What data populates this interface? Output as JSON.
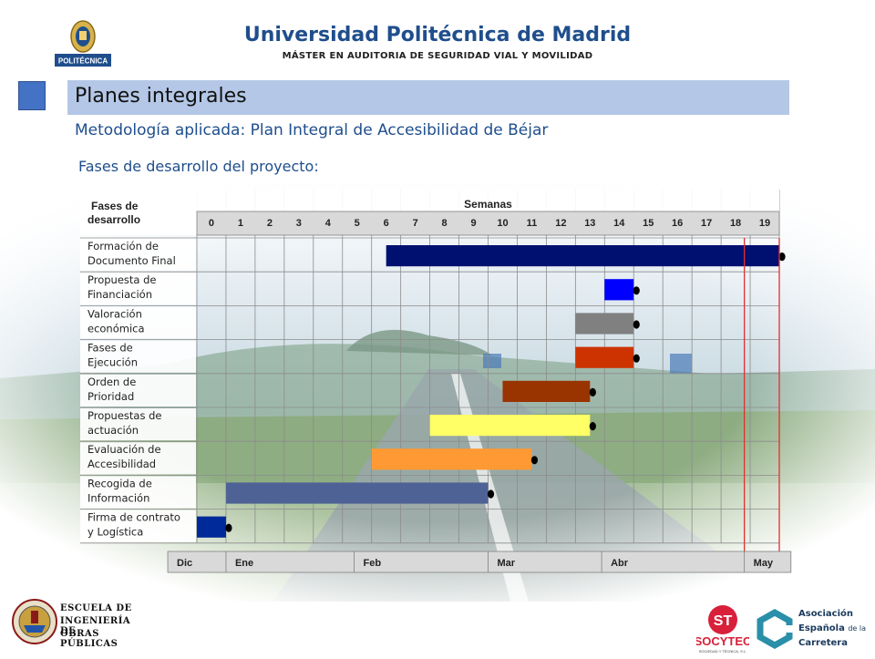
{
  "header": {
    "title": "Universidad Politécnica de Madrid",
    "subtitle": "MÁSTER EN AUDITORIA DE SEGURIDAD VIAL Y MOVILIDAD",
    "logo_label": "POLITÉCNICA"
  },
  "section": {
    "title": "Planes integrales",
    "subtitle": "Metodología aplicada: Plan Integral de Accesibilidad de Béjar",
    "phases_title": "Fases de desarrollo del proyecto:"
  },
  "chart_data": {
    "type": "gantt",
    "phase_header": [
      "Fases de",
      "desarrollo"
    ],
    "weeks_header": "Semanas",
    "weeks": [
      "0",
      "1",
      "2",
      "3",
      "4",
      "5",
      "6",
      "7",
      "8",
      "9",
      "10",
      "11",
      "12",
      "13",
      "14",
      "15",
      "16",
      "17",
      "18",
      "19"
    ],
    "tasks": [
      {
        "label": [
          "Formación de",
          "Documento Final"
        ],
        "start": 6.5,
        "end": 20.0,
        "color": "#001070"
      },
      {
        "label": [
          "Propuesta de",
          "Financiación"
        ],
        "start": 14.0,
        "end": 15.0,
        "color": "#0000ff"
      },
      {
        "label": [
          "Valoración",
          "económica"
        ],
        "start": 13.0,
        "end": 15.0,
        "color": "#808080"
      },
      {
        "label": [
          "Fases de",
          "Ejecución"
        ],
        "start": 13.0,
        "end": 15.0,
        "color": "#cc3300"
      },
      {
        "label": [
          "Orden de",
          "Prioridad"
        ],
        "start": 10.5,
        "end": 13.5,
        "color": "#993300"
      },
      {
        "label": [
          "Propuestas de",
          "actuación"
        ],
        "start": 8.0,
        "end": 13.5,
        "color": "#ffff66"
      },
      {
        "label": [
          "Evaluación de",
          "Accesibilidad"
        ],
        "start": 6.0,
        "end": 11.5,
        "color": "#ff9933"
      },
      {
        "label": [
          "Recogida de",
          "Información"
        ],
        "start": 1.0,
        "end": 10.0,
        "color": "#4f6295"
      },
      {
        "label": [
          "Firma de contrato",
          "y Logística"
        ],
        "start": 0.0,
        "end": 1.0,
        "color": "#002a99"
      }
    ],
    "months": [
      {
        "label": "Dic",
        "start": -1.0,
        "end": 1.0
      },
      {
        "label": "Ene",
        "start": 1.0,
        "end": 5.4
      },
      {
        "label": "Feb",
        "start": 5.4,
        "end": 10.0
      },
      {
        "label": "Mar",
        "start": 10.0,
        "end": 13.9
      },
      {
        "label": "Abr",
        "start": 13.9,
        "end": 18.8
      },
      {
        "label": "May",
        "start": 18.8,
        "end": 20.4
      }
    ],
    "deadline_lines": [
      18.8,
      20.0
    ],
    "deadline_color": "#e03030",
    "grid": true
  },
  "footer": {
    "escuela": [
      "ESCUELA DE",
      "INGENIERÍA DE",
      "OBRAS PÚBLICAS"
    ],
    "socytec": "SOCYTEC",
    "socytec_mark": "ST",
    "socytec_sub": "SOCIEDAD Y TÉCNICA, S.L.",
    "aec_lines": [
      {
        "big": "Asociación",
        "small": ""
      },
      {
        "big": "Española",
        "small": "de la"
      },
      {
        "big": "Carretera",
        "small": ""
      }
    ]
  },
  "colors": {
    "title_blue": "#1f4e8c",
    "section_bar": "#b4c7e7",
    "accent_square": "#4472c4"
  }
}
